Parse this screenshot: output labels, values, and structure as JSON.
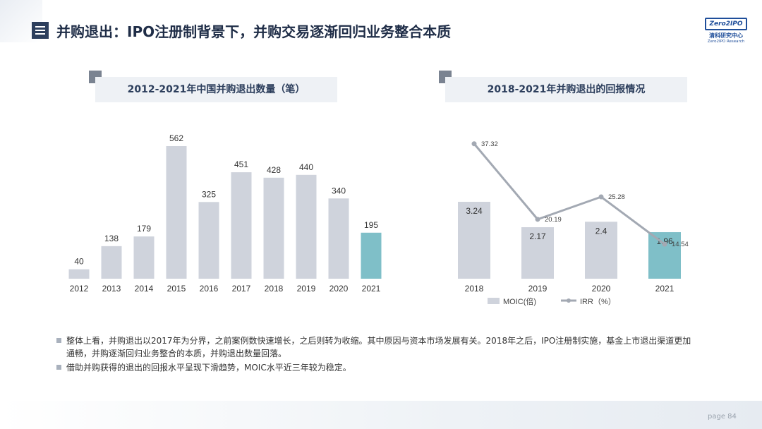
{
  "header": {
    "title": "并购退出：IPO注册制背景下，并购交易逐渐回归业务整合本质",
    "logo": {
      "box_text": "Zero2IPO",
      "cn": "清科研究中心",
      "en": "Zero2IPO Research"
    }
  },
  "chart_data": [
    {
      "type": "bar",
      "title": "2012-2021年中国并购退出数量（笔）",
      "categories": [
        "2012",
        "2013",
        "2014",
        "2015",
        "2016",
        "2017",
        "2018",
        "2019",
        "2020",
        "2021"
      ],
      "values": [
        40,
        138,
        179,
        562,
        325,
        451,
        428,
        440,
        340,
        195
      ],
      "ylim": [
        0,
        600
      ],
      "grid": false,
      "colors": {
        "default": "#cfd3dc",
        "highlight": "#7fbfc8"
      },
      "highlight_category": "2021"
    },
    {
      "type": "bar+line",
      "title": "2018-2021年并购退出的回报情况",
      "categories": [
        "2018",
        "2019",
        "2020",
        "2021"
      ],
      "series": [
        {
          "name": "MOIC(倍)",
          "type": "bar",
          "values": [
            3.24,
            2.17,
            2.4,
            1.96
          ],
          "labels": [
            "3.24",
            "2.17",
            "2.4",
            "1.96"
          ]
        },
        {
          "name": "IRR（%）",
          "type": "line",
          "values": [
            37.32,
            20.19,
            25.28,
            14.54
          ],
          "labels": [
            "37.32",
            "20.19",
            "25.28",
            "14.54"
          ]
        }
      ],
      "bar_ylim": [
        0,
        4.25
      ],
      "line_ylim": [
        0,
        46.5
      ],
      "grid": false,
      "legend": "bottom",
      "colors": {
        "bar": "#cfd3dc",
        "highlight": "#7fbfc8",
        "line": "#a3a9b3"
      },
      "highlight_category": "2021"
    }
  ],
  "notes": [
    "整体上看，并购退出以2017年为分界，之前案例数快速增长，之后则转为收缩。其中原因与资本市场发展有关。2018年之后，IPO注册制实施，基金上市退出渠道更加通畅，并购逐渐回归业务整合的本质，并购退出数量回落。",
    "借助并购获得的退出的回报水平呈现下滑趋势，MOIC水平近三年较为稳定。"
  ],
  "footer": {
    "page": "page  84"
  }
}
